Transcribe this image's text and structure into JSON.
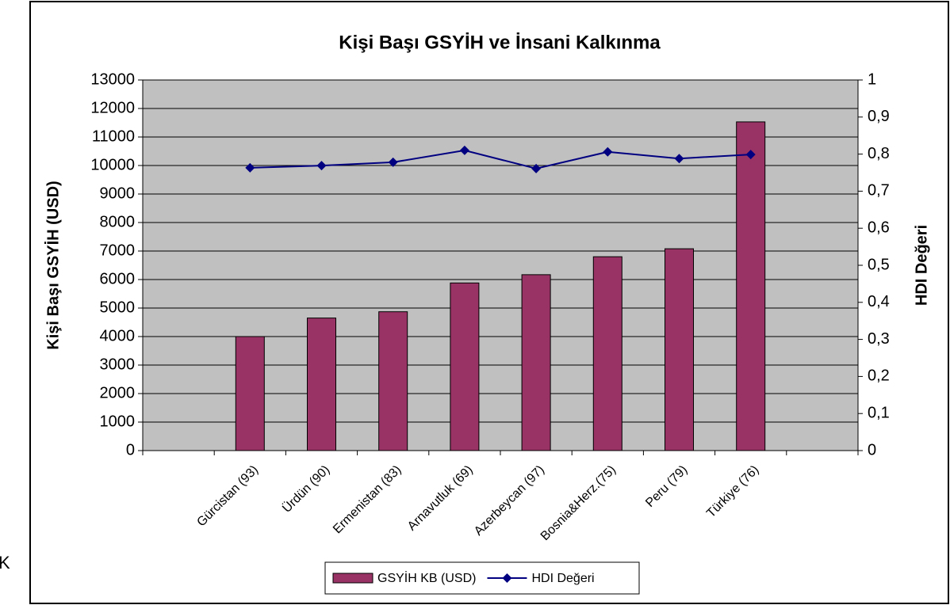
{
  "chart_data": {
    "type": "bar",
    "title": "Kişi Başı GSYİH ve İnsani Kalkınma",
    "y_label": "Kişi Başı GSYİH (USD)",
    "y2_label": "HDI Değeri",
    "annotation": "K",
    "categories": [
      null,
      "Gürcistan (93)",
      "Ürdün (90)",
      "Ermenistan (83)",
      "Arnavutluk (69)",
      "Azerbeycan (97)",
      "Bosnia&Herz.(75)",
      "Peru (79)",
      "Türkiye (76)",
      null
    ],
    "series": [
      {
        "name": "GSYİH KB (USD)",
        "type": "bar",
        "color": "#993366",
        "values": [
          null,
          4000,
          4650,
          4870,
          5880,
          6170,
          6800,
          7080,
          11530,
          null
        ]
      },
      {
        "name": "HDI Değeri",
        "type": "line",
        "axis": "y2",
        "color": "#000080",
        "values": [
          null,
          0.763,
          0.769,
          0.778,
          0.81,
          0.761,
          0.806,
          0.788,
          0.799,
          null
        ]
      }
    ],
    "ylim": [
      0,
      13000
    ],
    "yticks": [
      0,
      1000,
      2000,
      3000,
      4000,
      5000,
      6000,
      7000,
      8000,
      9000,
      10000,
      11000,
      12000,
      13000
    ],
    "y2lim": [
      0,
      1
    ],
    "y2ticks": [
      0,
      {
        "value": 0.1,
        "label": "0,1"
      },
      {
        "value": 0.2,
        "label": "0,2"
      },
      {
        "value": 0.3,
        "label": "0,3"
      },
      {
        "value": 0.4,
        "label": "0,4"
      },
      {
        "value": 0.5,
        "label": "0,5"
      },
      {
        "value": 0.6,
        "label": "0,6"
      },
      {
        "value": 0.7,
        "label": "0,7"
      },
      {
        "value": 0.8,
        "label": "0,8"
      },
      {
        "value": 0.9,
        "label": "0,9"
      },
      1
    ],
    "grid": true,
    "legend": "bottom"
  }
}
